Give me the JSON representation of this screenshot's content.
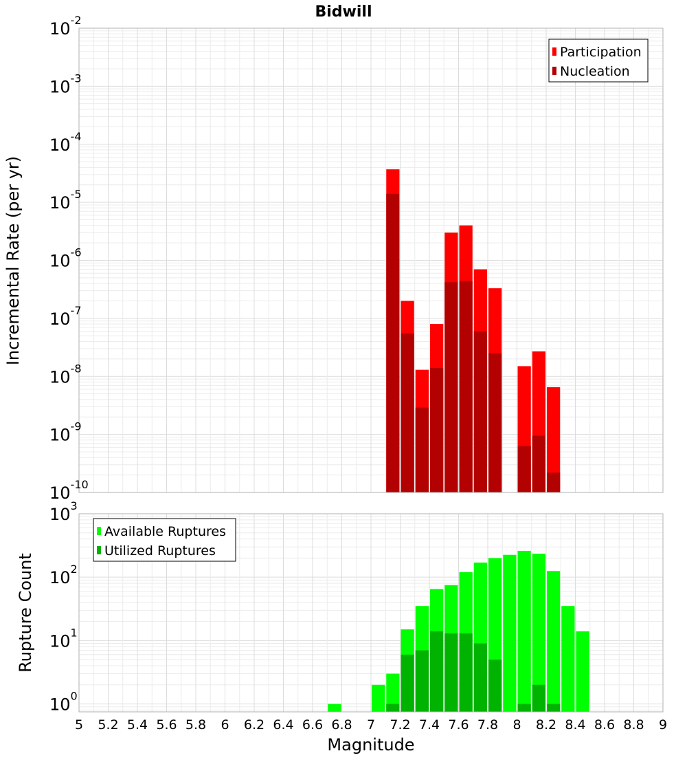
{
  "chart_data": [
    {
      "type": "bar",
      "title": "Bidwill",
      "ylabel": "Incremental Rate (per yr)",
      "yscale": "log",
      "ylim": [
        1e-10,
        0.01
      ],
      "y_ticks": [
        {
          "base": "10",
          "exp": "-2"
        },
        {
          "base": "10",
          "exp": "-3"
        },
        {
          "base": "10",
          "exp": "-4"
        },
        {
          "base": "10",
          "exp": "-5"
        },
        {
          "base": "10",
          "exp": "-6"
        },
        {
          "base": "10",
          "exp": "-7"
        },
        {
          "base": "10",
          "exp": "-8"
        },
        {
          "base": "10",
          "exp": "-9"
        },
        {
          "base": "10",
          "exp": "-10"
        }
      ],
      "legend_position": "top-right",
      "grid": true,
      "series": [
        {
          "name": "Participation",
          "color": "#ff0000",
          "x": [
            7.15,
            7.25,
            7.35,
            7.45,
            7.55,
            7.65,
            7.75,
            7.85,
            8.05,
            8.15,
            8.25
          ],
          "values": [
            3.7e-05,
            2e-07,
            1.3e-08,
            8e-08,
            3e-06,
            4e-06,
            7e-07,
            3.3e-07,
            1.5e-08,
            2.7e-08,
            6.5e-09
          ]
        },
        {
          "name": "Nucleation",
          "color": "#b30000",
          "x": [
            7.15,
            7.25,
            7.35,
            7.45,
            7.55,
            7.65,
            7.75,
            7.85,
            8.05,
            8.15,
            8.25
          ],
          "values": [
            1.4e-05,
            5.5e-08,
            2.9e-09,
            1.4e-08,
            4.2e-07,
            4.4e-07,
            6e-08,
            2.5e-08,
            6.3e-10,
            9.5e-10,
            2.2e-10
          ]
        }
      ]
    },
    {
      "type": "bar",
      "xlabel": "Magnitude",
      "ylabel": "Rupture Count",
      "yscale": "log",
      "ylim": [
        0.75,
        1000
      ],
      "xlim": [
        5,
        9
      ],
      "x_ticks": [
        "5",
        "5.2",
        "5.4",
        "5.6",
        "5.8",
        "6",
        "6.2",
        "6.4",
        "6.6",
        "6.8",
        "7",
        "7.2",
        "7.4",
        "7.6",
        "7.8",
        "8",
        "8.2",
        "8.4",
        "8.6",
        "8.8",
        "9"
      ],
      "y_ticks": [
        {
          "base": "10",
          "exp": "3"
        },
        {
          "base": "10",
          "exp": "2"
        },
        {
          "base": "10",
          "exp": "1"
        },
        {
          "base": "10",
          "exp": "0"
        }
      ],
      "legend_position": "top-left",
      "grid": true,
      "series": [
        {
          "name": "Available Ruptures",
          "color": "#00ff00",
          "x": [
            6.75,
            7.05,
            7.15,
            7.25,
            7.35,
            7.45,
            7.55,
            7.65,
            7.75,
            7.85,
            7.95,
            8.05,
            8.15,
            8.25,
            8.35,
            8.45
          ],
          "values": [
            1,
            2,
            3,
            15,
            35,
            65,
            75,
            120,
            170,
            200,
            225,
            260,
            235,
            125,
            35,
            14
          ]
        },
        {
          "name": "Utilized Ruptures",
          "color": "#00b300",
          "x": [
            7.15,
            7.25,
            7.35,
            7.45,
            7.55,
            7.65,
            7.75,
            7.85,
            8.05,
            8.15,
            8.25
          ],
          "values": [
            1,
            6,
            7,
            14,
            13,
            13,
            9,
            5,
            1,
            2,
            1
          ]
        }
      ]
    }
  ]
}
